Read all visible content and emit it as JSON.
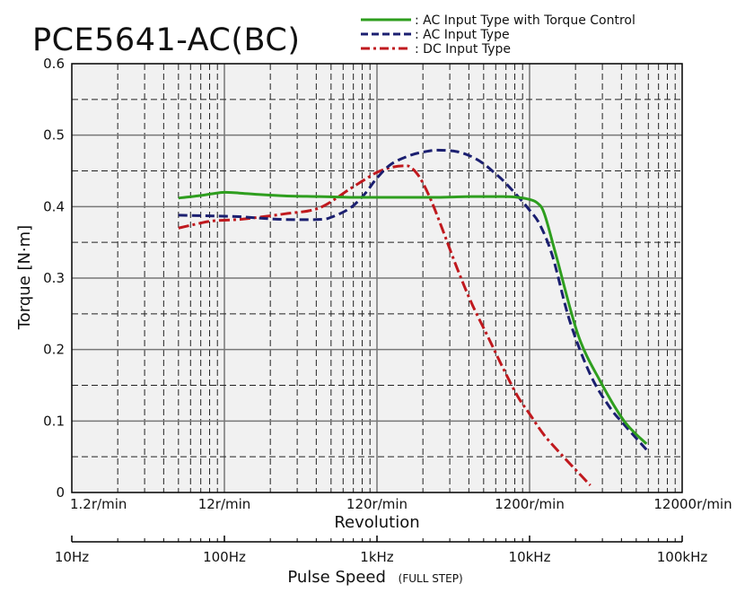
{
  "chart_data": {
    "type": "line",
    "title": "PCE5641-AC(BC)",
    "ylabel": "Torque [N·m]",
    "xlabel": "Revolution",
    "x2label": "Pulse Speed",
    "x2label_note": "(FULL STEP)",
    "x_scale": "log",
    "xlim_r_min": [
      1.2,
      12000
    ],
    "ylim": [
      0,
      0.6
    ],
    "grid": true,
    "legend_position": "top-right",
    "yticks": [
      0,
      0.1,
      0.2,
      0.3,
      0.4,
      0.5,
      0.6
    ],
    "ytick_labels": [
      "0",
      "0.1",
      "0.2",
      "0.3",
      "0.4",
      "0.5",
      "0.6"
    ],
    "xticks_r_min": [
      1.2,
      12,
      120,
      1200,
      12000
    ],
    "xtick_labels": [
      "1.2r/min",
      "12r/min",
      "120r/min",
      "1200r/min",
      "12000r/min"
    ],
    "pulse_ticks_hz": [
      10,
      100,
      1000,
      10000,
      100000
    ],
    "pulse_tick_labels": [
      "10Hz",
      "100Hz",
      "1kHz",
      "10kHz",
      "100kHz"
    ],
    "series": [
      {
        "name": ": AC Input Type with Torque Control",
        "color": "#2e9e1e",
        "style": "solid",
        "x": [
          6,
          8,
          10,
          12,
          15,
          20,
          30,
          50,
          80,
          120,
          200,
          300,
          500,
          800,
          1000,
          1200,
          1350,
          1500,
          1800,
          2500,
          3500,
          5000,
          7000
        ],
        "y": [
          0.412,
          0.415,
          0.418,
          0.42,
          0.419,
          0.417,
          0.415,
          0.414,
          0.413,
          0.413,
          0.413,
          0.413,
          0.414,
          0.414,
          0.413,
          0.41,
          0.405,
          0.39,
          0.33,
          0.22,
          0.155,
          0.1,
          0.068
        ]
      },
      {
        "name": ": AC Input Type",
        "color": "#1b1f70",
        "style": "dashed",
        "x": [
          6,
          10,
          15,
          20,
          30,
          50,
          60,
          80,
          100,
          120,
          150,
          200,
          250,
          300,
          400,
          500,
          600,
          700,
          800,
          1000,
          1200,
          1400,
          1700,
          2200,
          3000,
          4000,
          5000,
          7000
        ],
        "y": [
          0.388,
          0.387,
          0.386,
          0.384,
          0.382,
          0.382,
          0.385,
          0.398,
          0.418,
          0.44,
          0.46,
          0.472,
          0.477,
          0.479,
          0.477,
          0.47,
          0.46,
          0.448,
          0.437,
          0.415,
          0.395,
          0.375,
          0.33,
          0.24,
          0.165,
          0.12,
          0.095,
          0.06
        ]
      },
      {
        "name": ": DC Input Type",
        "color": "#c0191e",
        "style": "dash-dot",
        "x": [
          6,
          8,
          10,
          15,
          20,
          30,
          50,
          80,
          100,
          120,
          150,
          180,
          200,
          230,
          270,
          320,
          400,
          500,
          650,
          800,
          1000,
          1200,
          1500,
          2000,
          2500,
          3000
        ],
        "y": [
          0.37,
          0.376,
          0.38,
          0.382,
          0.385,
          0.39,
          0.398,
          0.425,
          0.438,
          0.448,
          0.455,
          0.457,
          0.455,
          0.44,
          0.41,
          0.37,
          0.315,
          0.265,
          0.215,
          0.175,
          0.135,
          0.11,
          0.08,
          0.05,
          0.028,
          0.01
        ]
      }
    ]
  }
}
